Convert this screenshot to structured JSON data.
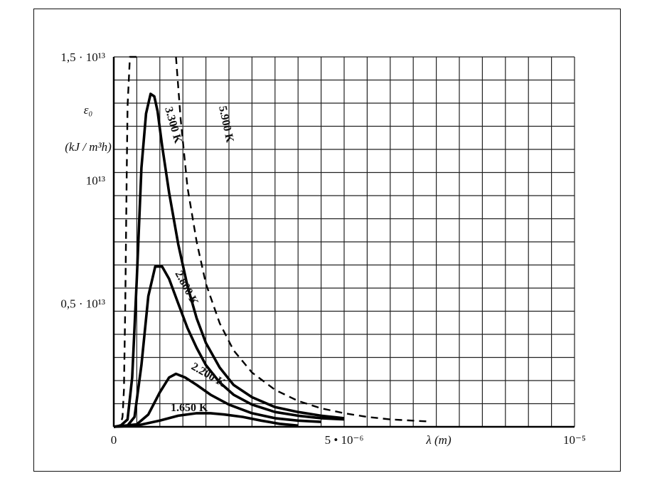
{
  "chart_data": {
    "type": "line",
    "ylabel_symbol": "ε₀",
    "ylabel_unit": "kJ / m³h",
    "xlabel": "λ (m)",
    "xlim": [
      0,
      1e-05
    ],
    "ylim": [
      0,
      15000000000000.0
    ],
    "grid": true,
    "x_ticks": [
      {
        "value": 0,
        "label": "0"
      },
      {
        "value": 5e-06,
        "label": "5 • 10⁻⁶"
      },
      {
        "value": 1e-05,
        "label": "10⁻⁵"
      }
    ],
    "y_ticks": [
      {
        "value": 5000000000000.0,
        "label": "0,5 · 10¹³"
      },
      {
        "value": 10000000000000.0,
        "label": "10¹³"
      },
      {
        "value": 15000000000000.0,
        "label": "1,5 · 10¹³"
      }
    ],
    "series": [
      {
        "name": "5.900 K",
        "style": "dashed",
        "x": [
          0.0,
          1e-07,
          1.5e-07,
          1.9e-07,
          2.2e-07,
          2.5e-07,
          2.8e-07,
          3e-07,
          3.5e-07,
          4.5e-07,
          5.5e-07
        ],
        "y": [
          0.0,
          20000000000.0,
          100000000000.0,
          400000000000.0,
          1500000000000.0,
          5000000000000.0,
          10000000000000.0,
          13000000000000.0,
          16000000000000.0,
          17000000000000.0,
          16000000000000.0
        ],
        "x2": [
          1.35e-06,
          1.45e-06,
          1.6e-06,
          1.8e-06,
          2e-06,
          2.3e-06,
          2.6e-06,
          3e-06,
          3.5e-06,
          4e-06,
          4.5e-06,
          5e-06,
          5.5e-06,
          6e-06,
          6.8e-06
        ],
        "y2": [
          15500000000000.0,
          12500000000000.0,
          9700000000000.0,
          7500000000000.0,
          5800000000000.0,
          4200000000000.0,
          3100000000000.0,
          2200000000000.0,
          1500000000000.0,
          1050000000000.0,
          750000000000.0,
          550000000000.0,
          400000000000.0,
          300000000000.0,
          220000000000.0
        ]
      },
      {
        "name": "3.300 K",
        "style": "solid",
        "x": [
          0.0,
          1.5e-07,
          3e-07,
          4e-07,
          5e-07,
          6e-07,
          7e-07,
          8e-07,
          8.8e-07,
          9.5e-07,
          1.05e-06,
          1.2e-06,
          1.4e-06,
          1.6e-06,
          1.8e-06,
          2e-06,
          2.3e-06,
          2.6e-06,
          3e-06,
          3.5e-06,
          4e-06,
          4.5e-06,
          5e-06
        ],
        "y": [
          0.0,
          50000000000.0,
          300000000000.0,
          2000000000000.0,
          6000000000000.0,
          10500000000000.0,
          12700000000000.0,
          13500000000000.0,
          13400000000000.0,
          12800000000000.0,
          11400000000000.0,
          9500000000000.0,
          7400000000000.0,
          5700000000000.0,
          4400000000000.0,
          3400000000000.0,
          2400000000000.0,
          1700000000000.0,
          1200000000000.0,
          800000000000.0,
          600000000000.0,
          450000000000.0,
          350000000000.0
        ]
      },
      {
        "name": "2.800 K",
        "style": "solid",
        "x": [
          0.0,
          3e-07,
          4.5e-07,
          6e-07,
          7.5e-07,
          9e-07,
          1.05e-06,
          1.2e-06,
          1.4e-06,
          1.6e-06,
          1.8e-06,
          2e-06,
          2.3e-06,
          2.6e-06,
          3e-06,
          3.5e-06,
          4e-06,
          4.5e-06,
          5e-06
        ],
        "y": [
          0.0,
          50000000000.0,
          400000000000.0,
          2500000000000.0,
          5300000000000.0,
          6500000000000.0,
          6500000000000.0,
          6000000000000.0,
          5000000000000.0,
          4000000000000.0,
          3200000000000.0,
          2500000000000.0,
          1800000000000.0,
          1300000000000.0,
          900000000000.0,
          600000000000.0,
          450000000000.0,
          350000000000.0,
          300000000000.0
        ]
      },
      {
        "name": "2.200 K",
        "style": "solid",
        "x": [
          0.0,
          5e-07,
          7.5e-07,
          1e-06,
          1.2e-06,
          1.35e-06,
          1.55e-06,
          1.8e-06,
          2.1e-06,
          2.5e-06,
          3e-06,
          3.5e-06,
          4e-06,
          4.5e-06
        ],
        "y": [
          0.0,
          100000000000.0,
          500000000000.0,
          1400000000000.0,
          2000000000000.0,
          2150000000000.0,
          2000000000000.0,
          1700000000000.0,
          1300000000000.0,
          900000000000.0,
          550000000000.0,
          350000000000.0,
          250000000000.0,
          200000000000.0
        ]
      },
      {
        "name": "1.650 K",
        "style": "solid",
        "x": [
          0.0,
          5e-07,
          1e-06,
          1.4e-06,
          1.8e-06,
          2.1e-06,
          2.4e-06,
          2.8e-06,
          3.2e-06,
          3.6e-06,
          4e-06
        ],
        "y": [
          0.0,
          50000000000.0,
          250000000000.0,
          450000000000.0,
          550000000000.0,
          550000000000.0,
          500000000000.0,
          400000000000.0,
          250000000000.0,
          120000000000.0,
          50000000000.0
        ]
      }
    ]
  }
}
